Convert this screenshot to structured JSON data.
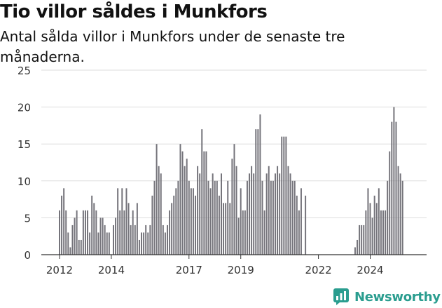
{
  "header": {
    "title": "Tio villor såldes i Munkfors",
    "subtitle": "Antal sålda villor i Munkfors under de senaste tre månaderna."
  },
  "brand": {
    "name": "Newsworthy",
    "icon": "newsworthy-logo-icon",
    "color": "#2a9d8f"
  },
  "colors": {
    "bar": "#74737a",
    "highlight": "#20a39e",
    "grid": "#dddddd",
    "axis": "#333333",
    "text": "#333333"
  },
  "chart_data": {
    "type": "bar",
    "x_start": "2012-01",
    "x_step": "month",
    "values": [
      6,
      8,
      9,
      6,
      3,
      1,
      4,
      5,
      6,
      2,
      2,
      6,
      6,
      6,
      3,
      8,
      7,
      6,
      3,
      5,
      5,
      4,
      3,
      3,
      0,
      4,
      5,
      9,
      6,
      9,
      6,
      9,
      7,
      4,
      6,
      4,
      7,
      2,
      3,
      3,
      4,
      3,
      4,
      8,
      10,
      15,
      12,
      11,
      4,
      3,
      4,
      6,
      7,
      8,
      9,
      10,
      15,
      14,
      12,
      13,
      10,
      9,
      9,
      8,
      12,
      11,
      17,
      14,
      14,
      10,
      9,
      11,
      10,
      10,
      8,
      11,
      7,
      7,
      10,
      7,
      13,
      15,
      12,
      5,
      9,
      6,
      6,
      10,
      11,
      12,
      11,
      17,
      17,
      19,
      10,
      6,
      11,
      12,
      10,
      10,
      11,
      12,
      11,
      16,
      16,
      16,
      12,
      11,
      10,
      10,
      8,
      6,
      9,
      0,
      8,
      0,
      0,
      0,
      0,
      0,
      0,
      0,
      0,
      0,
      0,
      0,
      0,
      0,
      0,
      0,
      0,
      0,
      0,
      0,
      0,
      0,
      0,
      1,
      2,
      4,
      4,
      4,
      6,
      9,
      7,
      5,
      8,
      7,
      9,
      6,
      6,
      6,
      10,
      14,
      18,
      20,
      18,
      12,
      11,
      10
    ],
    "highlight_index": 161,
    "highlight_label": "10",
    "ylim": [
      0,
      25
    ],
    "yticks": [
      0,
      5,
      10,
      15,
      20,
      25
    ],
    "xticks": [
      {
        "label": "2012",
        "year": 2012
      },
      {
        "label": "2014",
        "year": 2014
      },
      {
        "label": "2017",
        "year": 2017
      },
      {
        "label": "2019",
        "year": 2019
      },
      {
        "label": "2022",
        "year": 2022
      },
      {
        "label": "2024",
        "year": 2024
      }
    ],
    "grid": true,
    "legend": "none",
    "title": "",
    "xlabel": "",
    "ylabel": ""
  }
}
